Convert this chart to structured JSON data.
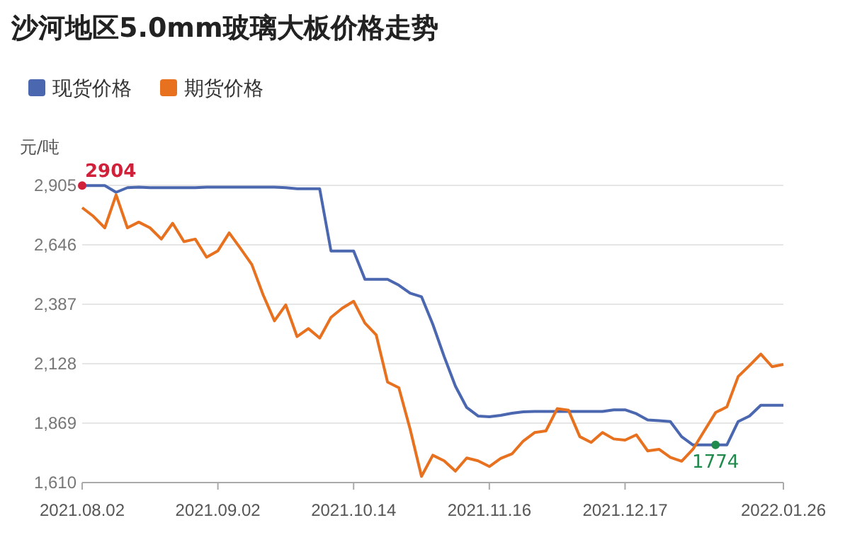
{
  "chart_data": {
    "type": "line",
    "title": "沙河地区5.0mm玻璃大板价格走势",
    "ylabel": "元/吨",
    "categories": [
      "2021.08.02",
      null,
      null,
      null,
      null,
      null,
      null,
      null,
      null,
      null,
      null,
      null,
      "2021.09.02",
      null,
      null,
      null,
      null,
      null,
      null,
      null,
      null,
      null,
      null,
      null,
      "2021.10.14",
      null,
      null,
      null,
      null,
      null,
      null,
      null,
      null,
      null,
      null,
      null,
      "2021.11.16",
      null,
      null,
      null,
      null,
      null,
      null,
      null,
      null,
      null,
      null,
      null,
      "2021.12.17",
      null,
      null,
      null,
      null,
      null,
      null,
      null,
      null,
      null,
      null,
      null,
      null,
      null,
      "2022.01.26"
    ],
    "ylim": [
      1610,
      2905
    ],
    "yticks": [
      {
        "value": 1610,
        "label": "1,610"
      },
      {
        "value": 1869,
        "label": "1,869"
      },
      {
        "value": 2128,
        "label": "2,128"
      },
      {
        "value": 2387,
        "label": "2,387"
      },
      {
        "value": 2646,
        "label": "2,646"
      },
      {
        "value": 2905,
        "label": "2,905"
      }
    ],
    "grid": "y",
    "legend": "top left",
    "marker": "none",
    "line_style": "solid",
    "annotations": [
      {
        "text": "2904",
        "x": "2021.08.02",
        "y": 2904
      },
      {
        "text": "1774",
        "y": 1774
      }
    ],
    "series": [
      {
        "name": "现货价格",
        "color": "#4a67b0",
        "values": [
          2904,
          2904,
          2904,
          2875,
          2895,
          2897,
          2895,
          2895,
          2895,
          2895,
          2895,
          2897,
          2897,
          2897,
          2897,
          2897,
          2897,
          2897,
          2895,
          2890,
          2890,
          2890,
          2619,
          2619,
          2619,
          2496,
          2496,
          2496,
          2470,
          2435,
          2420,
          2300,
          2160,
          2030,
          1937,
          1900,
          1897,
          1903,
          1912,
          1918,
          1920,
          1920,
          1920,
          1920,
          1920,
          1920,
          1920,
          1927,
          1927,
          1910,
          1883,
          1880,
          1876,
          1810,
          1774,
          1774,
          1774,
          1774,
          1876,
          1900,
          1947,
          1947,
          1947
        ]
      },
      {
        "name": "期货价格",
        "color": "#e8711f",
        "values": [
          2808,
          2770,
          2720,
          2864,
          2720,
          2745,
          2720,
          2671,
          2740,
          2660,
          2671,
          2592,
          2620,
          2698,
          2630,
          2560,
          2428,
          2315,
          2384,
          2246,
          2281,
          2240,
          2330,
          2370,
          2400,
          2305,
          2253,
          2048,
          2023,
          1842,
          1637,
          1729,
          1705,
          1660,
          1717,
          1705,
          1680,
          1715,
          1735,
          1791,
          1828,
          1835,
          1932,
          1925,
          1810,
          1785,
          1828,
          1800,
          1795,
          1818,
          1748,
          1755,
          1720,
          1703,
          1755,
          1835,
          1915,
          1940,
          2072,
          2120,
          2170,
          2115,
          2125
        ]
      }
    ]
  }
}
